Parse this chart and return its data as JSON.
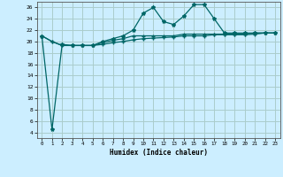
{
  "xlabel": "Humidex (Indice chaleur)",
  "background_color": "#cceeff",
  "grid_color": "#aacccc",
  "line_color": "#006666",
  "xlim": [
    -0.5,
    23.5
  ],
  "ylim": [
    3.0,
    27.0
  ],
  "yticks": [
    4,
    6,
    8,
    10,
    12,
    14,
    16,
    18,
    20,
    22,
    24,
    26
  ],
  "xticks": [
    0,
    1,
    2,
    3,
    4,
    5,
    6,
    7,
    8,
    9,
    10,
    11,
    12,
    13,
    14,
    15,
    16,
    17,
    18,
    19,
    20,
    21,
    22,
    23
  ],
  "series1_x": [
    0,
    1,
    2,
    3,
    4,
    5,
    6,
    7,
    8,
    9,
    10,
    11,
    12,
    13,
    14,
    15,
    16,
    17,
    18,
    19,
    20,
    21,
    22,
    23
  ],
  "series1_y": [
    21.0,
    4.5,
    19.5,
    19.3,
    19.3,
    19.3,
    20.0,
    20.5,
    21.0,
    22.0,
    25.0,
    26.0,
    23.5,
    23.0,
    24.5,
    26.5,
    26.5,
    24.0,
    21.5,
    21.5,
    21.5,
    21.5,
    21.5,
    21.5
  ],
  "series2_x": [
    0,
    1,
    2,
    3,
    4,
    5,
    6,
    7,
    8,
    9,
    10,
    11,
    12,
    13,
    14,
    15,
    16,
    17,
    18,
    19,
    20,
    21,
    22,
    23
  ],
  "series2_y": [
    21.0,
    20.0,
    19.3,
    19.3,
    19.3,
    19.3,
    19.5,
    19.8,
    20.0,
    20.3,
    20.5,
    20.6,
    20.7,
    20.8,
    21.0,
    21.0,
    21.0,
    21.2,
    21.2,
    21.2,
    21.2,
    21.3,
    21.5,
    21.5
  ],
  "series3_x": [
    0,
    1,
    2,
    3,
    4,
    5,
    6,
    7,
    8,
    9,
    10,
    11,
    12,
    13,
    14,
    15,
    16,
    17,
    18,
    19,
    20,
    21,
    22,
    23
  ],
  "series3_y": [
    21.0,
    20.0,
    19.3,
    19.3,
    19.3,
    19.3,
    19.8,
    20.2,
    20.5,
    21.0,
    21.0,
    21.0,
    21.0,
    21.0,
    21.3,
    21.3,
    21.3,
    21.3,
    21.3,
    21.3,
    21.3,
    21.5,
    21.5,
    21.5
  ]
}
